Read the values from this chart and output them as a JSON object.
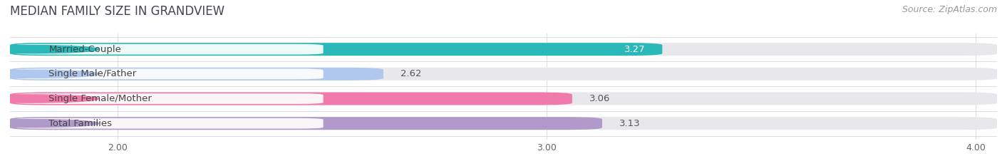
{
  "title": "MEDIAN FAMILY SIZE IN GRANDVIEW",
  "source": "Source: ZipAtlas.com",
  "categories": [
    "Married-Couple",
    "Single Male/Father",
    "Single Female/Mother",
    "Total Families"
  ],
  "values": [
    3.27,
    2.62,
    3.06,
    3.13
  ],
  "bar_colors": [
    "#2ab8b8",
    "#b0c8ee",
    "#f07aaa",
    "#b09aca"
  ],
  "bar_bg_color": "#e8e8ec",
  "xlim": [
    1.75,
    4.05
  ],
  "xticks": [
    2.0,
    3.0,
    4.0
  ],
  "xtick_labels": [
    "2.00",
    "3.00",
    "4.00"
  ],
  "fig_bg_color": "#ffffff",
  "bar_height": 0.52,
  "title_fontsize": 12,
  "label_fontsize": 9.5,
  "tick_fontsize": 9,
  "source_fontsize": 9,
  "value_label_inside_threshold": 3.2
}
